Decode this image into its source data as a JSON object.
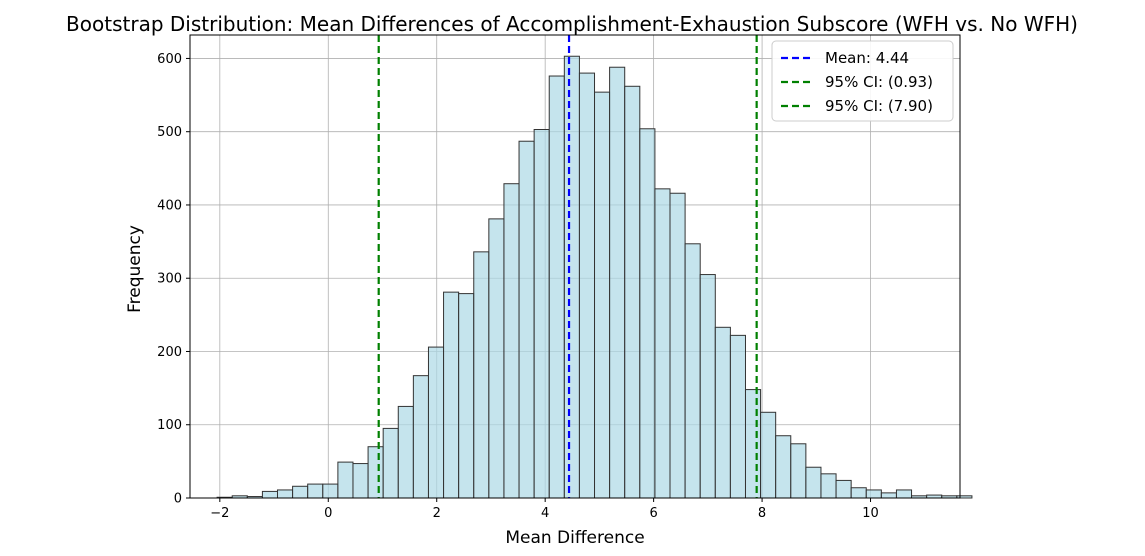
{
  "chart_data": {
    "type": "bar",
    "title": "Bootstrap Distribution: Mean Differences of Accomplishment-Exhaustion Subscore (WFH vs. No WFH)",
    "xlabel": "Mean Difference",
    "ylabel": "Frequency",
    "xlim": [
      -2.55,
      11.65
    ],
    "ylim": [
      0,
      632
    ],
    "x_ticks": [
      -2,
      0,
      2,
      4,
      6,
      8,
      10
    ],
    "x_tick_labels": [
      "−2",
      "0",
      "2",
      "4",
      "6",
      "8",
      "10"
    ],
    "y_ticks": [
      0,
      100,
      200,
      300,
      400,
      500,
      600
    ],
    "y_tick_labels": [
      "0",
      "100",
      "200",
      "300",
      "400",
      "500",
      "600"
    ],
    "grid": true,
    "legend_position": "top-right",
    "bin_start": -2.05,
    "bin_width": 0.2784,
    "values": [
      1,
      3,
      2,
      9,
      11,
      16,
      19,
      19,
      49,
      47,
      70,
      95,
      125,
      167,
      206,
      281,
      279,
      336,
      381,
      429,
      487,
      503,
      576,
      603,
      580,
      554,
      588,
      562,
      504,
      422,
      416,
      347,
      305,
      233,
      222,
      148,
      117,
      85,
      74,
      42,
      33,
      24,
      14,
      11,
      7,
      11,
      3,
      4,
      3,
      3
    ],
    "bar_fill": "#add8e6",
    "bar_edge": "#333333",
    "reference_lines": [
      {
        "x": 4.44,
        "label": "Mean: 4.44",
        "color": "#0000ff"
      },
      {
        "x": 0.93,
        "label": "95% CI: (0.93)",
        "color": "#008000"
      },
      {
        "x": 7.9,
        "label": "95% CI: (7.90)",
        "color": "#008000"
      }
    ]
  }
}
